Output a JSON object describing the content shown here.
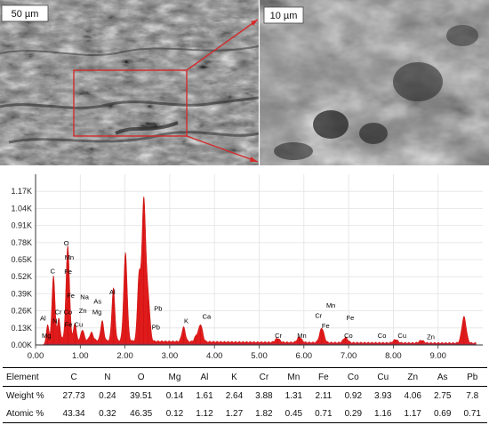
{
  "sem": {
    "scale_left": "50 µm",
    "scale_right": "10 µm",
    "zoom_box_color": "#d42b2b"
  },
  "chart_data": {
    "type": "area",
    "title": "",
    "xlabel": "",
    "ylabel": "",
    "xlim": [
      0,
      10
    ],
    "ylim": [
      0,
      1300
    ],
    "x_ticks": [
      "0.00",
      "1.00",
      "2.00",
      "3.00",
      "4.00",
      "5.00",
      "6.00",
      "7.00",
      "8.00",
      "9.00"
    ],
    "y_ticks": [
      "0.00K",
      "0.13K",
      "0.26K",
      "0.39K",
      "0.52K",
      "0.65K",
      "0.78K",
      "0.91K",
      "1.04K",
      "1.17K"
    ],
    "fill_color": "#e01b1b",
    "peaks": [
      {
        "x": 0.27,
        "y": 140,
        "w": 0.03
      },
      {
        "x": 0.4,
        "y": 500,
        "w": 0.035
      },
      {
        "x": 0.52,
        "y": 160,
        "w": 0.03
      },
      {
        "x": 0.72,
        "y": 720,
        "w": 0.04
      },
      {
        "x": 0.88,
        "y": 130,
        "w": 0.03
      },
      {
        "x": 1.05,
        "y": 80,
        "w": 0.035
      },
      {
        "x": 1.25,
        "y": 60,
        "w": 0.04
      },
      {
        "x": 1.49,
        "y": 150,
        "w": 0.035
      },
      {
        "x": 1.74,
        "y": 400,
        "w": 0.035
      },
      {
        "x": 2.01,
        "y": 670,
        "w": 0.04
      },
      {
        "x": 2.31,
        "y": 470,
        "w": 0.035
      },
      {
        "x": 2.42,
        "y": 1080,
        "w": 0.045
      },
      {
        "x": 2.52,
        "y": 300,
        "w": 0.04
      },
      {
        "x": 3.31,
        "y": 110,
        "w": 0.04
      },
      {
        "x": 3.59,
        "y": 40,
        "w": 0.04
      },
      {
        "x": 3.69,
        "y": 130,
        "w": 0.045
      },
      {
        "x": 5.41,
        "y": 30,
        "w": 0.05
      },
      {
        "x": 5.9,
        "y": 40,
        "w": 0.05
      },
      {
        "x": 6.4,
        "y": 110,
        "w": 0.05
      },
      {
        "x": 6.93,
        "y": 40,
        "w": 0.05
      },
      {
        "x": 8.05,
        "y": 25,
        "w": 0.05
      },
      {
        "x": 8.63,
        "y": 20,
        "w": 0.05
      },
      {
        "x": 9.58,
        "y": 200,
        "w": 0.05
      }
    ],
    "annotations": [
      {
        "text": "O",
        "x": 0.63,
        "y": 760
      },
      {
        "text": "Mn",
        "x": 0.65,
        "y": 650
      },
      {
        "text": "Fe",
        "x": 0.64,
        "y": 540
      },
      {
        "text": "C",
        "x": 0.33,
        "y": 545
      },
      {
        "text": "Fe",
        "x": 0.7,
        "y": 360
      },
      {
        "text": "Na",
        "x": 1.0,
        "y": 350
      },
      {
        "text": "As",
        "x": 1.3,
        "y": 315
      },
      {
        "text": "Cr Co",
        "x": 0.43,
        "y": 235
      },
      {
        "text": "Zn",
        "x": 0.97,
        "y": 245
      },
      {
        "text": "Mg",
        "x": 1.27,
        "y": 235
      },
      {
        "text": "Al",
        "x": 1.65,
        "y": 385
      },
      {
        "text": "Al",
        "x": 0.1,
        "y": 185
      },
      {
        "text": "N",
        "x": 0.38,
        "y": 165
      },
      {
        "text": "Fe Cu",
        "x": 0.65,
        "y": 140
      },
      {
        "text": "Mg",
        "x": 0.14,
        "y": 55
      },
      {
        "text": "Pb",
        "x": 2.65,
        "y": 260
      },
      {
        "text": "Pb",
        "x": 2.6,
        "y": 120
      },
      {
        "text": "K",
        "x": 3.32,
        "y": 165
      },
      {
        "text": "Ca",
        "x": 3.73,
        "y": 200
      },
      {
        "text": "Cr",
        "x": 5.35,
        "y": 55
      },
      {
        "text": "Mn",
        "x": 5.85,
        "y": 55
      },
      {
        "text": "Cr",
        "x": 6.25,
        "y": 205
      },
      {
        "text": "Mn",
        "x": 6.5,
        "y": 285
      },
      {
        "text": "Fe",
        "x": 6.4,
        "y": 130
      },
      {
        "text": "Fe",
        "x": 6.95,
        "y": 190
      },
      {
        "text": "Co",
        "x": 6.9,
        "y": 55
      },
      {
        "text": "Co",
        "x": 7.65,
        "y": 55
      },
      {
        "text": "Cu",
        "x": 8.1,
        "y": 55
      },
      {
        "text": "Zn",
        "x": 8.75,
        "y": 45
      }
    ]
  },
  "table": {
    "header": [
      "Element",
      "C",
      "N",
      "O",
      "Mg",
      "Al",
      "K",
      "Cr",
      "Mn",
      "Fe",
      "Co",
      "Cu",
      "Zn",
      "As",
      "Pb"
    ],
    "rows": [
      {
        "label": "Weight %",
        "values": [
          "27.73",
          "0.24",
          "39.51",
          "0.14",
          "1.61",
          "2.64",
          "3.88",
          "1.31",
          "2.11",
          "0.92",
          "3.93",
          "4.06",
          "2.75",
          "7.8"
        ]
      },
      {
        "label": "Atomic %",
        "values": [
          "43.34",
          "0.32",
          "46.35",
          "0.12",
          "1.12",
          "1.27",
          "1.82",
          "0.45",
          "0.71",
          "0.29",
          "1.16",
          "1.17",
          "0.69",
          "0.71"
        ]
      }
    ]
  }
}
